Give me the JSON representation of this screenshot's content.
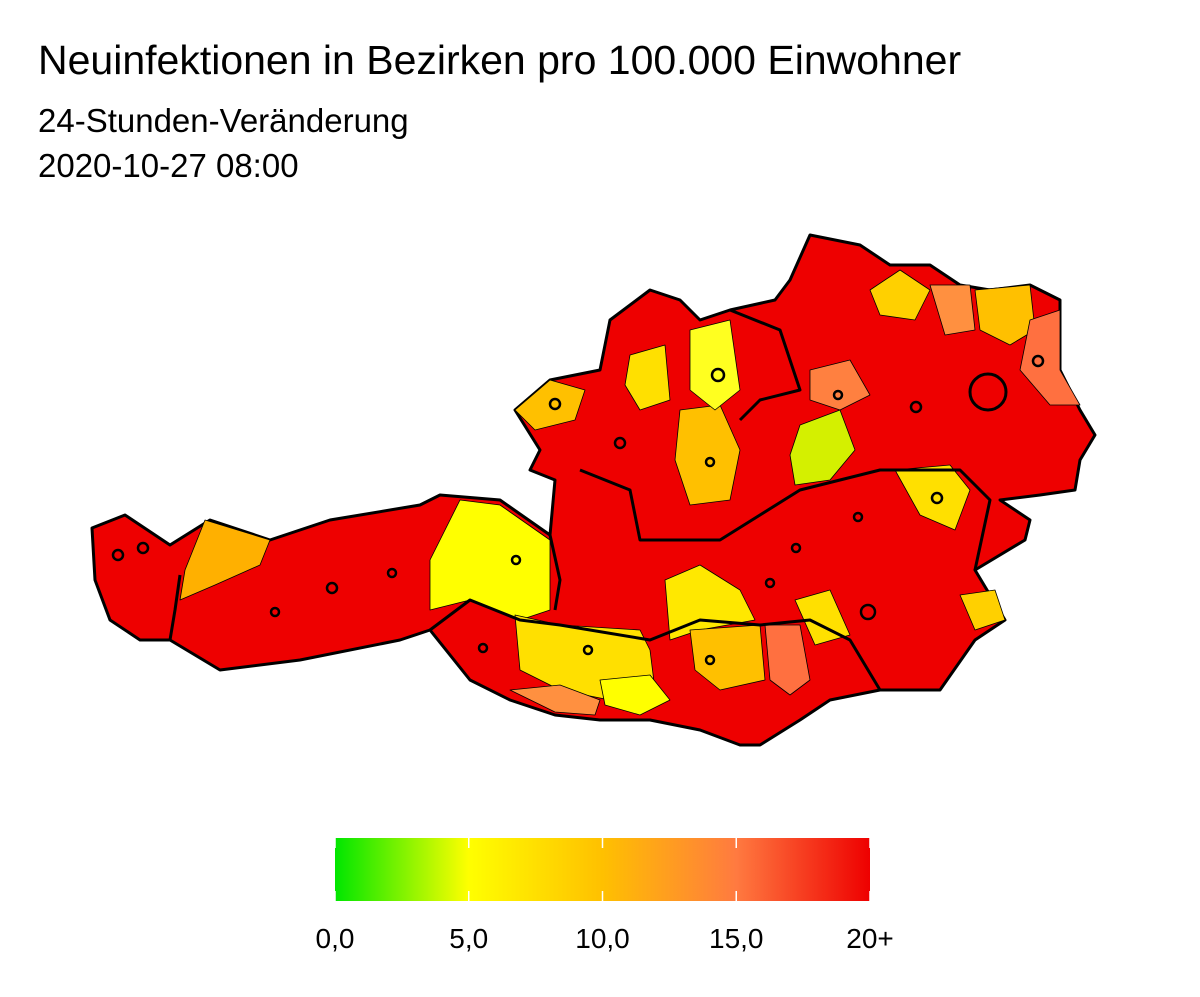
{
  "header": {
    "title": "Neuinfektionen in Bezirken pro 100.000 Einwohner",
    "subtitle": "24-Stunden-Veränderung",
    "date": "2020-10-27 08:00"
  },
  "legend": {
    "range": [
      0,
      20
    ],
    "colors": [
      "#00e600",
      "#ffff00",
      "#ffc000",
      "#ff7a40",
      "#ee0000"
    ],
    "ticks": [
      {
        "value": 0,
        "label": "0,0"
      },
      {
        "value": 5,
        "label": "5,0"
      },
      {
        "value": 10,
        "label": "10,0"
      },
      {
        "value": 15,
        "label": "15,0"
      },
      {
        "value": 20,
        "label": "20+"
      }
    ]
  }
}
